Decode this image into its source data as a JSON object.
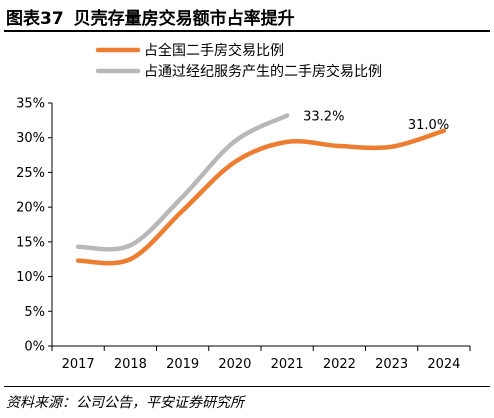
{
  "figure": {
    "number": "图表37",
    "title": "贝壳存量房交易额市占率提升",
    "source": "资料来源：公司公告，平安证券研究所"
  },
  "colors": {
    "orange": "#ED7D31",
    "gray": "#B8B8B8"
  },
  "chart_data": {
    "type": "line",
    "title": "贝壳存量房交易额市占率提升",
    "x": [
      2017,
      2018,
      2019,
      2020,
      2021,
      2022,
      2023,
      2024
    ],
    "x_tick_labels": [
      "2017",
      "2018",
      "2019",
      "2020",
      "2021",
      "2022",
      "2023",
      "2024"
    ],
    "ylim": [
      0,
      35
    ],
    "y_ticks": [
      0,
      5,
      10,
      15,
      20,
      25,
      30,
      35
    ],
    "y_tick_labels": [
      "0%",
      "5%",
      "10%",
      "15%",
      "20%",
      "25%",
      "30%",
      "35%"
    ],
    "grid": false,
    "legend_position": "top-left",
    "series": [
      {
        "name": "占全国二手房交易比例",
        "color": "#ED7D31",
        "x": [
          2017,
          2018,
          2019,
          2020,
          2021,
          2022,
          2023,
          2024
        ],
        "values": [
          12.3,
          12.5,
          19.5,
          26.5,
          29.4,
          28.8,
          28.7,
          31.0
        ],
        "end_label": "31.0%"
      },
      {
        "name": "占通过经纪服务产生的二手房交易比例",
        "color": "#B8B8B8",
        "x": [
          2017,
          2018,
          2019,
          2020,
          2021
        ],
        "values": [
          14.3,
          14.5,
          21.5,
          29.5,
          33.2
        ],
        "end_label": "33.2%"
      }
    ]
  }
}
